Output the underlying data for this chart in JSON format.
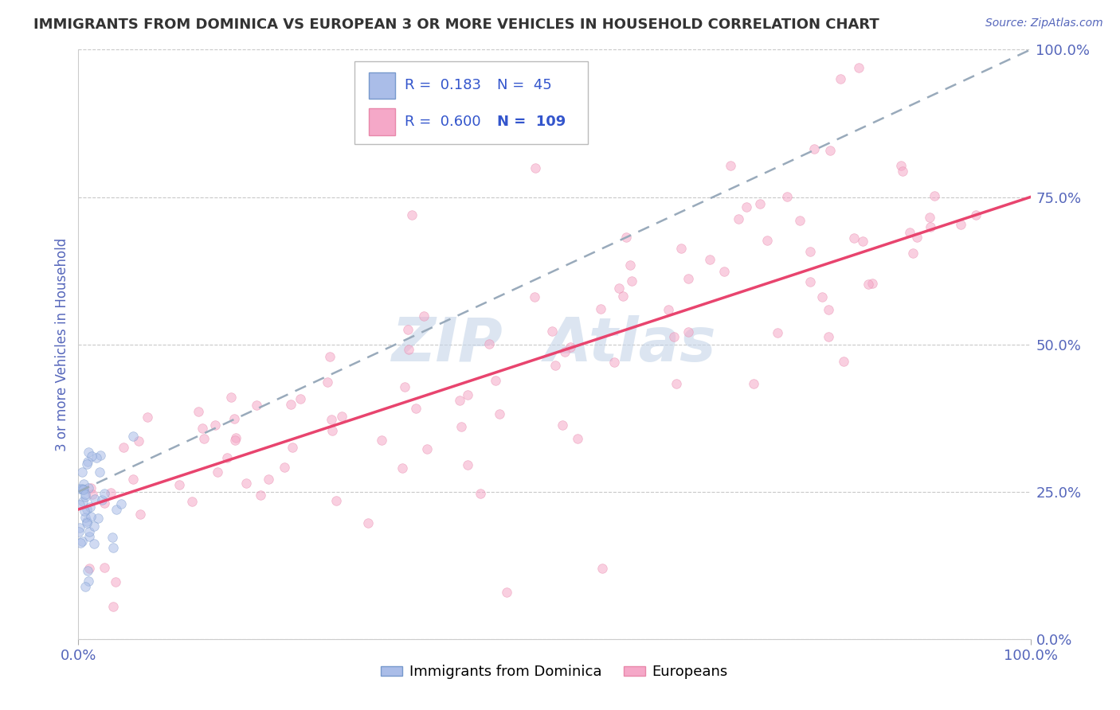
{
  "title": "IMMIGRANTS FROM DOMINICA VS EUROPEAN 3 OR MORE VEHICLES IN HOUSEHOLD CORRELATION CHART",
  "source_text": "Source: ZipAtlas.com",
  "ylabel": "3 or more Vehicles in Household",
  "blue_R": 0.183,
  "blue_N": 45,
  "pink_R": 0.6,
  "pink_N": 109,
  "blue_label": "Immigrants from Dominica",
  "pink_label": "Europeans",
  "xlim": [
    0.0,
    100.0
  ],
  "ylim": [
    0.0,
    100.0
  ],
  "x_ticks": [
    0.0,
    100.0
  ],
  "y_ticks": [
    0.0,
    25.0,
    50.0,
    75.0,
    100.0
  ],
  "x_tick_labels": [
    "0.0%",
    "100.0%"
  ],
  "y_tick_labels": [
    "0.0%",
    "25.0%",
    "50.0%",
    "75.0%",
    "100.0%"
  ],
  "background_color": "#ffffff",
  "grid_color": "#bbbbbb",
  "title_color": "#333333",
  "axis_label_color": "#5566bb",
  "tick_label_color": "#5566bb",
  "blue_dot_color": "#aabde8",
  "blue_dot_edge": "#7799cc",
  "pink_dot_color": "#f5a8c8",
  "pink_dot_edge": "#e888aa",
  "blue_line_color": "#99aabb",
  "pink_line_color": "#e8446e",
  "watermark_color": "#c5d5e8",
  "legend_color": "#3355cc",
  "blue_line_start_y": 25.0,
  "blue_line_end_y": 100.0,
  "pink_line_start_y": 22.0,
  "pink_line_end_y": 75.0,
  "dot_size": 70,
  "dot_alpha": 0.55
}
